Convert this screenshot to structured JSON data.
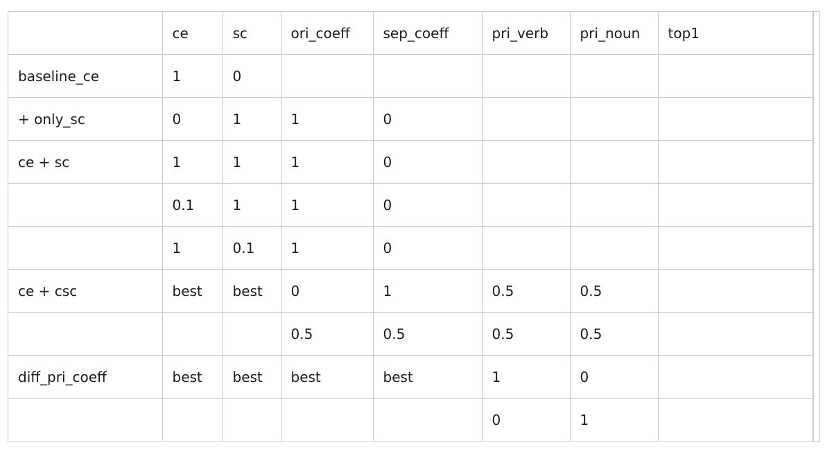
{
  "table": {
    "headers": [
      "",
      "ce",
      "sc",
      "ori_coeff",
      "sep_coeff",
      "pri_verb",
      "pri_noun",
      "top1"
    ],
    "rows": [
      [
        "baseline_ce",
        "1",
        "0",
        "",
        "",
        "",
        "",
        ""
      ],
      [
        "+ only_sc",
        "0",
        "1",
        "1",
        "0",
        "",
        "",
        ""
      ],
      [
        "ce + sc",
        "1",
        "1",
        "1",
        "0",
        "",
        "",
        ""
      ],
      [
        "",
        "0.1",
        "1",
        "1",
        "0",
        "",
        "",
        ""
      ],
      [
        "",
        "1",
        "0.1",
        "1",
        "0",
        "",
        "",
        ""
      ],
      [
        "ce + csc",
        "best",
        "best",
        "0",
        "1",
        "0.5",
        "0.5",
        ""
      ],
      [
        "",
        "",
        "",
        "0.5",
        "0.5",
        "0.5",
        "0.5",
        ""
      ],
      [
        "diff_pri_coeff",
        "best",
        "best",
        "best",
        "best",
        "1",
        "0",
        ""
      ],
      [
        "",
        "",
        "",
        "",
        "",
        "0",
        "1",
        ""
      ]
    ]
  }
}
